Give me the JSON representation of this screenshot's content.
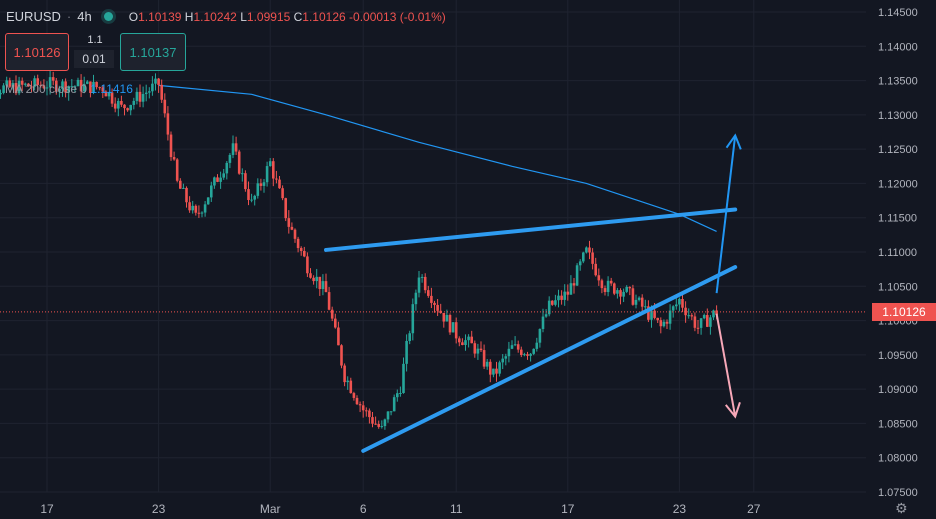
{
  "header": {
    "symbol": "EURUSD",
    "interval": "4h",
    "ohlc": {
      "o_label": "O",
      "o": "1.10139",
      "h_label": "H",
      "h": "1.10242",
      "l_label": "L",
      "l": "1.09915",
      "c_label": "C",
      "c": "1.10126",
      "change": "-0.00013 (-0.01%)"
    }
  },
  "trade": {
    "sell_price": "1.10126",
    "buy_price": "1.10137",
    "spread": "1.1",
    "lot": "0.01"
  },
  "indicator": {
    "name": "MA 200 close 0",
    "value": "1.11416"
  },
  "current_price_tag": "1.10126",
  "colors": {
    "background": "#131722",
    "up": "#26a69a",
    "down": "#ef5350",
    "ma": "#2196f3",
    "trendline": "#2e9bf0",
    "arrow_up": "#2196f3",
    "arrow_down": "#f7a8b8"
  },
  "icons": {
    "live": "live-dot-icon",
    "settings": "gear-icon"
  },
  "chart_data": {
    "type": "candlestick",
    "title": "",
    "xlabel": "",
    "ylabel": "",
    "y_range": [
      1.075,
      1.146
    ],
    "y_ticks": [
      "1.14500",
      "1.14000",
      "1.13500",
      "1.13000",
      "1.12500",
      "1.12000",
      "1.11500",
      "1.11000",
      "1.10500",
      "1.10000",
      "1.09500",
      "1.09000",
      "1.08500",
      "1.08000",
      "1.07500"
    ],
    "x_ticks": [
      {
        "label": "17",
        "date": "2022-02-17"
      },
      {
        "label": "23",
        "date": "2022-02-23"
      },
      {
        "label": "Mar",
        "date": "2022-03-01"
      },
      {
        "label": "6",
        "date": "2022-03-06"
      },
      {
        "label": "11",
        "date": "2022-03-11"
      },
      {
        "label": "17",
        "date": "2022-03-17"
      },
      {
        "label": "23",
        "date": "2022-03-23"
      },
      {
        "label": "27",
        "date": "2022-03-27"
      }
    ],
    "grid": true,
    "close_path": [
      {
        "date": "2022-02-13",
        "close": 1.1335
      },
      {
        "date": "2022-02-17",
        "close": 1.1345
      },
      {
        "date": "2022-02-20",
        "close": 1.134
      },
      {
        "date": "2022-02-21",
        "close": 1.131
      },
      {
        "date": "2022-02-23",
        "close": 1.1345
      },
      {
        "date": "2022-02-24",
        "close": 1.12
      },
      {
        "date": "2022-02-25",
        "close": 1.115
      },
      {
        "date": "2022-02-27",
        "close": 1.125
      },
      {
        "date": "2022-02-28",
        "close": 1.117
      },
      {
        "date": "2022-03-01",
        "close": 1.123
      },
      {
        "date": "2022-03-02",
        "close": 1.114
      },
      {
        "date": "2022-03-03",
        "close": 1.108
      },
      {
        "date": "2022-03-04",
        "close": 1.104
      },
      {
        "date": "2022-03-05",
        "close": 1.092
      },
      {
        "date": "2022-03-06",
        "close": 1.087
      },
      {
        "date": "2022-03-07",
        "close": 1.084
      },
      {
        "date": "2022-03-08",
        "close": 1.0905
      },
      {
        "date": "2022-03-09",
        "close": 1.107
      },
      {
        "date": "2022-03-10",
        "close": 1.102
      },
      {
        "date": "2022-03-11",
        "close": 1.098
      },
      {
        "date": "2022-03-12",
        "close": 1.096
      },
      {
        "date": "2022-03-13",
        "close": 1.092
      },
      {
        "date": "2022-03-14",
        "close": 1.096
      },
      {
        "date": "2022-03-15",
        "close": 1.0955
      },
      {
        "date": "2022-03-16",
        "close": 1.102
      },
      {
        "date": "2022-03-17",
        "close": 1.104
      },
      {
        "date": "2022-03-18",
        "close": 1.11
      },
      {
        "date": "2022-03-19",
        "close": 1.105
      },
      {
        "date": "2022-03-20",
        "close": 1.1045
      },
      {
        "date": "2022-03-21",
        "close": 1.102
      },
      {
        "date": "2022-03-22",
        "close": 1.099
      },
      {
        "date": "2022-03-23",
        "close": 1.103
      },
      {
        "date": "2022-03-24",
        "close": 1.099
      },
      {
        "date": "2022-03-25",
        "close": 1.1013
      }
    ],
    "ma200": {
      "name": "MA 200 close 0",
      "points": [
        {
          "date": "2022-02-23",
          "value": 1.1343
        },
        {
          "date": "2022-02-28",
          "value": 1.133
        },
        {
          "date": "2022-03-04",
          "value": 1.13
        },
        {
          "date": "2022-03-09",
          "value": 1.126
        },
        {
          "date": "2022-03-14",
          "value": 1.1225
        },
        {
          "date": "2022-03-18",
          "value": 1.12
        },
        {
          "date": "2022-03-23",
          "value": 1.1155
        },
        {
          "date": "2022-03-25",
          "value": 1.113
        }
      ]
    },
    "current_price": 1.10126,
    "drawings": {
      "upper_trendline": [
        {
          "date": "2022-03-04",
          "value": 1.1103
        },
        {
          "date": "2022-03-26",
          "value": 1.1162
        }
      ],
      "lower_trendline": [
        {
          "date": "2022-03-06",
          "value": 1.081
        },
        {
          "date": "2022-03-26",
          "value": 1.1078
        }
      ],
      "bullish_arrow": [
        {
          "date": "2022-03-25",
          "value": 1.104
        },
        {
          "date": "2022-03-26",
          "value": 1.127
        }
      ],
      "bearish_arrow": [
        {
          "date": "2022-03-25",
          "value": 1.101
        },
        {
          "date": "2022-03-26",
          "value": 1.086
        }
      ]
    }
  }
}
